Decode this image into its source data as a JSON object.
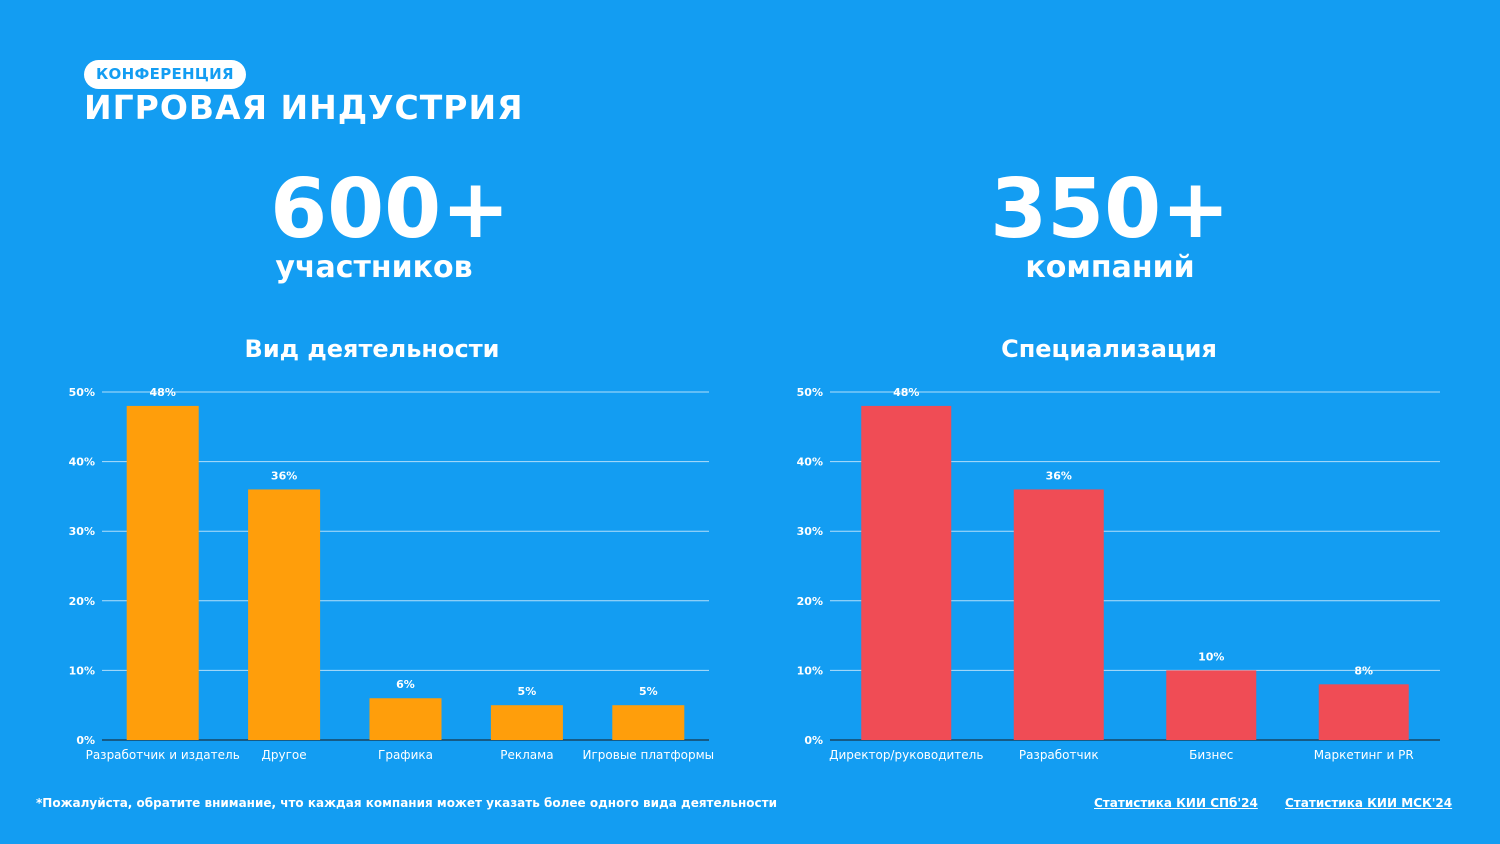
{
  "header": {
    "badge": "КОНФЕРЕНЦИЯ",
    "title": "ИГРОВАЯ ИНДУСТРИЯ"
  },
  "stats": {
    "participants": {
      "value": "600+",
      "label": "участников"
    },
    "companies": {
      "value": "350+",
      "label": "компаний"
    }
  },
  "colors": {
    "background": "#139df2",
    "bar_activity": "#ff9e0b",
    "bar_specialization": "#f04c55",
    "text": "#ffffff"
  },
  "chart_data": [
    {
      "type": "bar",
      "title": "Вид деятельности",
      "categories": [
        "Разработчик и издатель",
        "Другое",
        "Графика",
        "Реклама",
        "Игровые платформы"
      ],
      "values": [
        48,
        36,
        6,
        5,
        5
      ],
      "value_labels": [
        "48%",
        "36%",
        "6%",
        "5%",
        "5%"
      ],
      "ylim": [
        0,
        50
      ],
      "yticks": [
        "0%",
        "10%",
        "20%",
        "30%",
        "40%",
        "50%"
      ],
      "grid": true,
      "color": "#ff9e0b"
    },
    {
      "type": "bar",
      "title": "Специализация",
      "categories": [
        "Директор/руководитель",
        "Разработчик",
        "Бизнес",
        "Маркетинг и PR"
      ],
      "values": [
        48,
        36,
        10,
        8
      ],
      "value_labels": [
        "48%",
        "36%",
        "10%",
        "8%"
      ],
      "ylim": [
        0,
        50
      ],
      "yticks": [
        "0%",
        "10%",
        "20%",
        "30%",
        "40%",
        "50%"
      ],
      "grid": true,
      "color": "#f04c55"
    }
  ],
  "footer": {
    "note": "*Пожалуйста, обратите внимание, что каждая компания может указать более одного вида деятельности",
    "link_spb": "Статистика КИИ СПб'24",
    "link_msk": "Статистика КИИ МСК'24"
  }
}
